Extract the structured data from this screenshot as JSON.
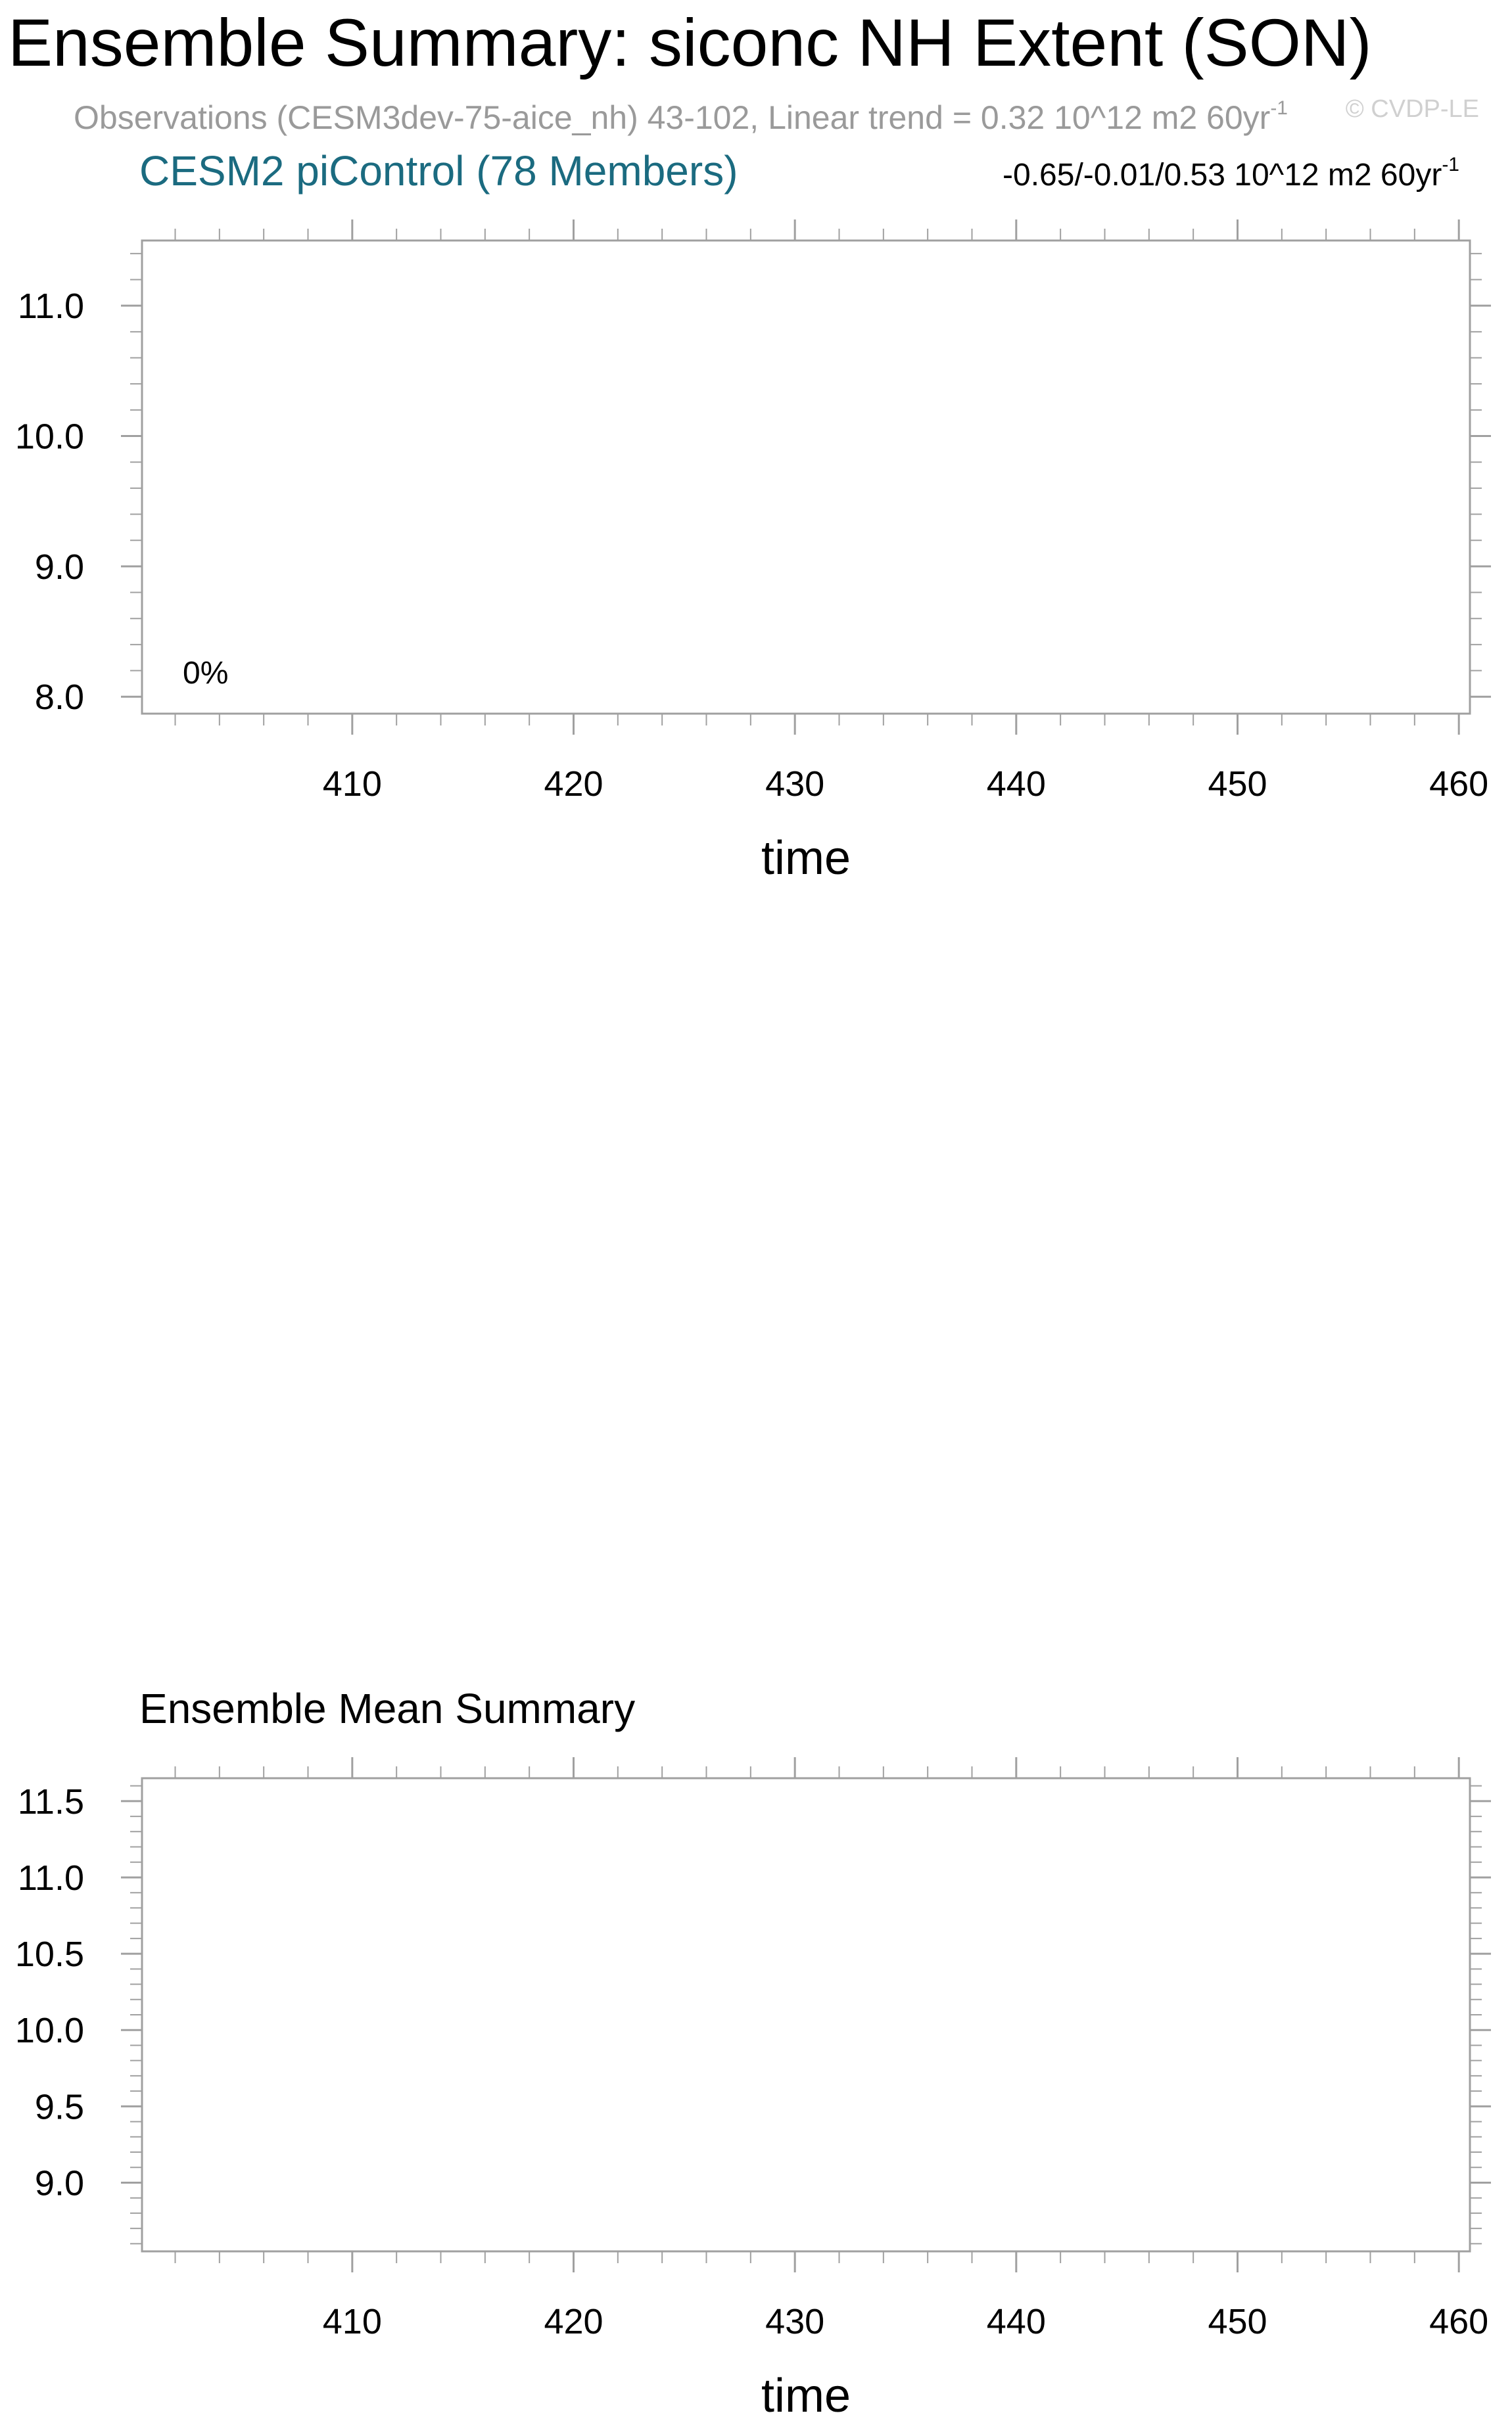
{
  "header": {
    "title": "Ensemble Summary: siconc NH Extent (SON)",
    "obs_line": "Observations (CESM3dev-75-aice_nh) 43-102, Linear trend = 0.32 10^12 m2 60yr",
    "obs_line_sup": "-1",
    "watermark": "© CVDP-LE"
  },
  "colors": {
    "title": "#000000",
    "obs_text": "#9a9a9a",
    "ensemble_label": "#1b6b80",
    "watermark": "#d0d0d0",
    "axis": "#a0a0a0"
  },
  "chart_data": [
    {
      "type": "line",
      "subtitle_left": "CESM2 piControl (78 Members)",
      "subtitle_right": "-0.65/-0.01/0.53 10^12 m2 60yr",
      "subtitle_right_sup": "-1",
      "annotation": "0%",
      "xlabel": "time",
      "ylabel": "",
      "xlim": [
        400.5,
        460.5
      ],
      "ylim": [
        7.87,
        11.5
      ],
      "x_major_ticks": [
        410,
        420,
        430,
        440,
        450,
        460
      ],
      "x_tick_labels": [
        "410",
        "420",
        "430",
        "440",
        "450",
        "460"
      ],
      "y_major_ticks": [
        8.0,
        9.0,
        10.0,
        11.0
      ],
      "y_tick_labels": [
        "8.0",
        "9.0",
        "10.0",
        "11.0"
      ],
      "series": []
    },
    {
      "type": "line",
      "subtitle_left": "Ensemble Mean Summary",
      "subtitle_right": "",
      "annotation": "",
      "xlabel": "time",
      "ylabel": "",
      "xlim": [
        400.5,
        460.5
      ],
      "ylim": [
        8.55,
        11.65
      ],
      "x_major_ticks": [
        410,
        420,
        430,
        440,
        450,
        460
      ],
      "x_tick_labels": [
        "410",
        "420",
        "430",
        "440",
        "450",
        "460"
      ],
      "y_major_ticks": [
        9.0,
        9.5,
        10.0,
        10.5,
        11.0,
        11.5
      ],
      "y_tick_labels": [
        "9.0",
        "9.5",
        "10.0",
        "10.5",
        "11.0",
        "11.5"
      ],
      "series": []
    }
  ]
}
